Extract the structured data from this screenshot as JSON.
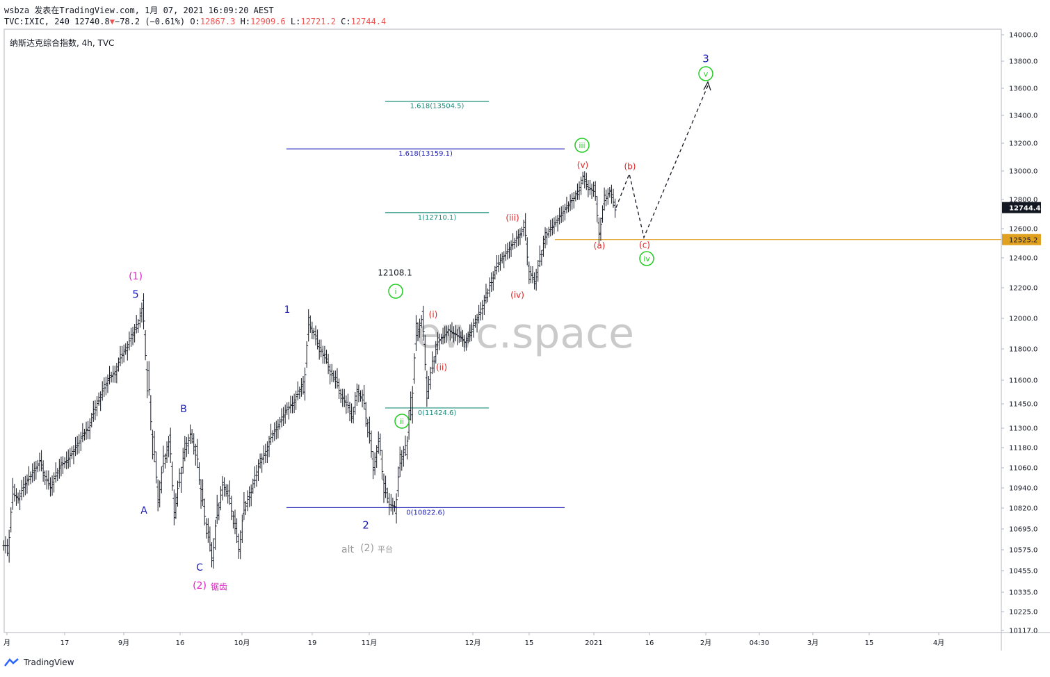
{
  "header": {
    "line1": "wsbza 发表在TradingView.com, 1月 07, 2021 16:09:20 AEST",
    "symbol": "TVC:IXIC, 240",
    "last": "12740.8",
    "change_arrow": "▼",
    "change": "−78.2 (−0.61%)",
    "o_label": "O:",
    "o_value": "12867.3",
    "h_label": "H:",
    "h_value": "12909.6",
    "l_label": "L:",
    "l_value": "12721.2",
    "c_label": "C:",
    "c_value": "12744.4"
  },
  "legend": "纳斯达克综合指数, 4h, TVC",
  "watermark": "ewc.space",
  "footer": {
    "brand": "TradingView"
  },
  "colors": {
    "blue": "#1a1ab5",
    "teal": "#1a8c7a",
    "red": "#e02020",
    "magenta": "#e020c8",
    "green": "#22cc22",
    "gray": "#999999",
    "orange": "#e0a020"
  },
  "chart_data": {
    "type": "line",
    "title": "纳斯达克综合指数, 4h, TVC",
    "ylim": [
      10117,
      14000
    ],
    "y_ticks": [
      "14000.0",
      "13800.0",
      "13600.0",
      "13400.0",
      "13200.0",
      "13000.0",
      "12800.0",
      "12600.0",
      "12400.0",
      "12200.0",
      "12000.0",
      "11800.0",
      "11600.0",
      "11450.0",
      "11300.0",
      "11180.0",
      "11060.0",
      "10940.0",
      "10820.0",
      "10695.0",
      "10575.0",
      "10455.0",
      "10335.0",
      "10225.0",
      "10117.0"
    ],
    "x_ticks": [
      "月",
      "17",
      "9月",
      "16",
      "10月",
      "19",
      "11月",
      "12月",
      "15",
      "2021",
      "16",
      "2月",
      "04:30",
      "3月",
      "15",
      "4月"
    ],
    "price_label": "12744.4",
    "level_label": "12525.2",
    "series": [
      {
        "values": [
          10600,
          10900,
          10880,
          10950,
          11000,
          11050,
          11090,
          11000,
          10950,
          11020,
          11080,
          11100,
          11150,
          11200,
          11260,
          11300,
          11400,
          11480,
          11560,
          11620,
          11650,
          11750,
          11800,
          11880,
          11950,
          12050,
          11600,
          11200,
          10900,
          11100,
          11200,
          10820,
          11000,
          11180,
          11250,
          11150,
          10900,
          10700,
          10550,
          10800,
          10950,
          10900,
          10750,
          10600,
          10820,
          10900,
          11000,
          11100,
          11150,
          11250,
          11300,
          11360,
          11420,
          11450,
          11520,
          11580,
          11950,
          11900,
          11800,
          11750,
          11650,
          11600,
          11500,
          11450,
          11380,
          11520,
          11480,
          11300,
          11080,
          11200,
          10950,
          10840,
          10830,
          11100,
          11180,
          11450,
          11900,
          11980,
          11550,
          11700,
          11850,
          11880,
          11920,
          11900,
          11880,
          11850,
          11900,
          11980,
          12050,
          12150,
          12250,
          12350,
          12400,
          12450,
          12500,
          12550,
          12600,
          12300,
          12250,
          12400,
          12550,
          12600,
          12650,
          12700,
          12750,
          12800,
          12850,
          12950,
          12880,
          12860,
          12600,
          12800,
          12850,
          12744.4
        ]
      }
    ],
    "annotations": [
      {
        "text": "(1)",
        "color": "magenta"
      },
      {
        "text": "5",
        "color": "blue"
      },
      {
        "text": "A",
        "color": "blue"
      },
      {
        "text": "B",
        "color": "blue"
      },
      {
        "text": "C",
        "color": "blue"
      },
      {
        "text": "(2)",
        "color": "magenta"
      },
      {
        "text": "锯齿",
        "color": "magenta"
      },
      {
        "text": "1",
        "color": "blue"
      },
      {
        "text": "2",
        "color": "blue"
      },
      {
        "text": "alt",
        "color": "gray"
      },
      {
        "text": "(2)",
        "color": "gray"
      },
      {
        "text": "平台",
        "color": "gray"
      },
      {
        "text": "12108.1",
        "color": "black"
      },
      {
        "text": "i",
        "color": "green"
      },
      {
        "text": "ii",
        "color": "green"
      },
      {
        "text": "iii",
        "color": "green"
      },
      {
        "text": "iv",
        "color": "green"
      },
      {
        "text": "v",
        "color": "green"
      },
      {
        "text": "3",
        "color": "blue"
      },
      {
        "text": "(i)",
        "color": "red"
      },
      {
        "text": "(ii)",
        "color": "red"
      },
      {
        "text": "(iii)",
        "color": "red"
      },
      {
        "text": "(iv)",
        "color": "red"
      },
      {
        "text": "(v)",
        "color": "red"
      },
      {
        "text": "(a)",
        "color": "red"
      },
      {
        "text": "(b)",
        "color": "red"
      },
      {
        "text": "(c)",
        "color": "red"
      }
    ],
    "fib_levels": [
      {
        "label": "1.618(13159.1)",
        "value": 13159.1,
        "color": "blue"
      },
      {
        "label": "0(10822.6)",
        "value": 10822.6,
        "color": "blue"
      },
      {
        "label": "1.618(13504.5)",
        "value": 13504.5,
        "color": "teal"
      },
      {
        "label": "1(12710.1)",
        "value": 12710.1,
        "color": "teal"
      },
      {
        "label": "0(11424.6)",
        "value": 11424.6,
        "color": "teal"
      }
    ],
    "horizontal_level": {
      "value": 12525.2,
      "color": "orange"
    },
    "projection": [
      12744.4,
      12980,
      12540,
      13620
    ]
  }
}
